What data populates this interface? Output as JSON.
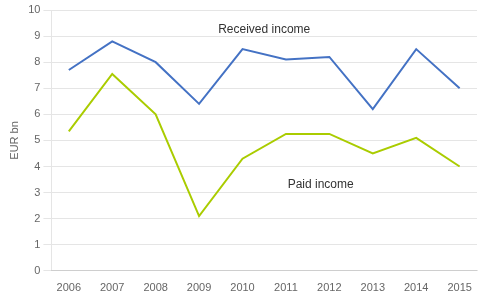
{
  "chart_data": {
    "type": "line",
    "y_label": "EUR bn",
    "x": [
      2006,
      2007,
      2008,
      2009,
      2010,
      2011,
      2012,
      2013,
      2014,
      2015
    ],
    "series": [
      {
        "color": "#4472C4",
        "values": [
          7.7,
          8.8,
          8.0,
          6.4,
          8.5,
          8.1,
          8.2,
          6.2,
          8.5,
          7.0
        ]
      },
      {
        "color": "#AACC00",
        "values": [
          5.35,
          7.55,
          6.0,
          2.1,
          4.3,
          5.25,
          5.25,
          4.5,
          5.1,
          4.0
        ]
      }
    ],
    "annotations": [
      {
        "text": "Received income",
        "x": 2010.5,
        "y": 9.25
      },
      {
        "text": "Paid income",
        "x": 2011.8,
        "y": 3.3
      }
    ],
    "xlim": [
      2005.6,
      2015.4
    ],
    "xticks": [
      2006,
      2007,
      2008,
      2009,
      2010,
      2011,
      2012,
      2013,
      2014,
      2015
    ],
    "ylim": [
      0,
      10
    ],
    "yticks": [
      0,
      1,
      2,
      3,
      4,
      5,
      6,
      7,
      8,
      9,
      10
    ],
    "grid": true
  }
}
